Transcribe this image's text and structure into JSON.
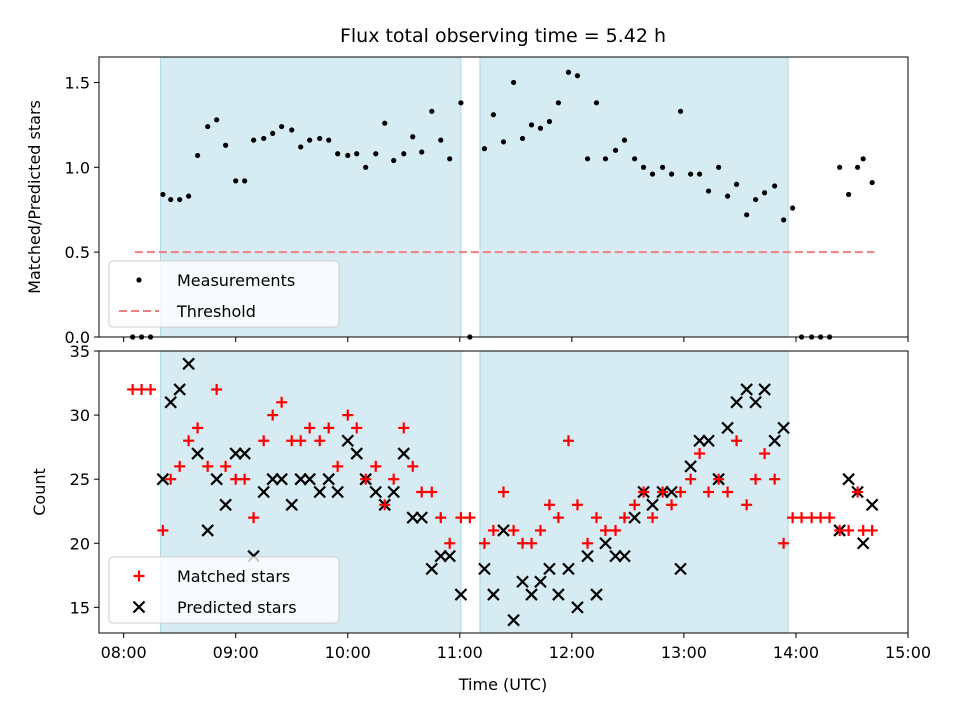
{
  "chart_data": [
    {
      "type": "scatter",
      "title": "Flux total observing time = 5.42 h",
      "xlabel": "",
      "ylabel": "Matched/Predicted stars",
      "xlim": [
        7.78,
        15.0
      ],
      "ylim": [
        0.0,
        1.65
      ],
      "yticks": [
        0.0,
        0.5,
        1.0,
        1.5
      ],
      "ytick_labels": [
        "0.0",
        "0.5",
        "1.0",
        "1.5"
      ],
      "observing_windows": [
        [
          8.33,
          11.01
        ],
        [
          11.18,
          13.93
        ]
      ],
      "legend": {
        "location": "lower-left",
        "entries": [
          "Measurements",
          "Threshold"
        ]
      },
      "threshold": {
        "name": "Threshold",
        "y": 0.5,
        "x_range": [
          8.1,
          14.7
        ],
        "color": "#f08080"
      },
      "series": [
        {
          "name": "Measurements",
          "color": "#000000",
          "x": [
            8.08,
            8.16,
            8.24,
            8.35,
            8.42,
            8.5,
            8.58,
            8.66,
            8.75,
            8.83,
            8.91,
            9.0,
            9.08,
            9.16,
            9.25,
            9.33,
            9.41,
            9.5,
            9.58,
            9.66,
            9.75,
            9.83,
            9.91,
            10.0,
            10.08,
            10.16,
            10.25,
            10.33,
            10.41,
            10.5,
            10.58,
            10.66,
            10.75,
            10.83,
            10.91,
            11.01,
            11.09,
            11.22,
            11.3,
            11.39,
            11.48,
            11.56,
            11.64,
            11.72,
            11.8,
            11.88,
            11.97,
            12.05,
            12.14,
            12.22,
            12.3,
            12.39,
            12.47,
            12.56,
            12.64,
            12.72,
            12.81,
            12.89,
            12.97,
            13.06,
            13.14,
            13.22,
            13.31,
            13.39,
            13.47,
            13.56,
            13.64,
            13.72,
            13.81,
            13.89,
            13.97,
            14.05,
            14.14,
            14.22,
            14.3,
            14.39,
            14.47,
            14.55,
            14.6,
            14.68
          ],
          "values": [
            0.0,
            0.0,
            0.0,
            0.84,
            0.81,
            0.81,
            0.83,
            1.07,
            1.24,
            1.28,
            1.13,
            0.92,
            0.92,
            1.16,
            1.17,
            1.2,
            1.24,
            1.22,
            1.12,
            1.16,
            1.17,
            1.16,
            1.08,
            1.07,
            1.08,
            1.0,
            1.08,
            1.26,
            1.04,
            1.08,
            1.18,
            1.09,
            1.33,
            1.16,
            1.05,
            1.38,
            0.0,
            1.11,
            1.31,
            1.15,
            1.5,
            1.17,
            1.25,
            1.23,
            1.27,
            1.38,
            1.56,
            1.54,
            1.05,
            1.38,
            1.05,
            1.1,
            1.16,
            1.05,
            1.0,
            0.96,
            1.0,
            0.96,
            1.33,
            0.96,
            0.96,
            0.86,
            1.0,
            0.83,
            0.9,
            0.72,
            0.81,
            0.85,
            0.89,
            0.69,
            0.76,
            0.0,
            0.0,
            0.0,
            0.0,
            1.0,
            0.84,
            1.0,
            1.05,
            0.91
          ]
        }
      ]
    },
    {
      "type": "scatter",
      "title": "",
      "xlabel": "Time (UTC)",
      "ylabel": "Count",
      "xlim": [
        7.78,
        15.0
      ],
      "ylim": [
        13,
        35
      ],
      "yticks": [
        15,
        20,
        25,
        30,
        35
      ],
      "ytick_labels": [
        "15",
        "20",
        "25",
        "30",
        "35"
      ],
      "xticks": [
        8,
        9,
        10,
        11,
        12,
        13,
        14,
        15
      ],
      "xtick_labels": [
        "08:00",
        "09:00",
        "10:00",
        "11:00",
        "12:00",
        "13:00",
        "14:00",
        "15:00"
      ],
      "observing_windows": [
        [
          8.33,
          11.01
        ],
        [
          11.18,
          13.93
        ]
      ],
      "legend": {
        "location": "lower-left",
        "entries": [
          "Matched stars",
          "Predicted stars"
        ]
      },
      "series": [
        {
          "name": "Matched stars",
          "marker": "plus",
          "color": "#ff0000",
          "x": [
            8.08,
            8.16,
            8.24,
            8.35,
            8.42,
            8.5,
            8.58,
            8.66,
            8.75,
            8.83,
            8.91,
            9.0,
            9.08,
            9.16,
            9.25,
            9.33,
            9.41,
            9.5,
            9.58,
            9.66,
            9.75,
            9.83,
            9.91,
            10.0,
            10.08,
            10.16,
            10.25,
            10.33,
            10.41,
            10.5,
            10.58,
            10.66,
            10.75,
            10.83,
            10.91,
            11.01,
            11.09,
            11.22,
            11.3,
            11.39,
            11.48,
            11.56,
            11.64,
            11.72,
            11.8,
            11.88,
            11.97,
            12.05,
            12.14,
            12.22,
            12.3,
            12.39,
            12.47,
            12.56,
            12.64,
            12.72,
            12.81,
            12.89,
            12.97,
            13.06,
            13.14,
            13.22,
            13.31,
            13.39,
            13.47,
            13.56,
            13.64,
            13.72,
            13.81,
            13.89,
            13.97,
            14.05,
            14.14,
            14.22,
            14.3,
            14.39,
            14.47,
            14.55,
            14.6,
            14.68
          ],
          "values": [
            32,
            32,
            32,
            21,
            25,
            26,
            28,
            29,
            26,
            32,
            26,
            25,
            25,
            22,
            28,
            30,
            31,
            28,
            28,
            29,
            28,
            29,
            26,
            30,
            29,
            25,
            26,
            23,
            25,
            29,
            26,
            24,
            24,
            22,
            20,
            22,
            22,
            20,
            21,
            24,
            21,
            20,
            20,
            21,
            23,
            22,
            28,
            23,
            20,
            22,
            21,
            21,
            22,
            23,
            24,
            22,
            24,
            23,
            24,
            25,
            27,
            24,
            25,
            24,
            28,
            23,
            25,
            27,
            25,
            20,
            22,
            22,
            22,
            22,
            22,
            21,
            21,
            24,
            21,
            21
          ]
        },
        {
          "name": "Predicted stars",
          "marker": "x",
          "color": "#000000",
          "x": [
            8.35,
            8.42,
            8.5,
            8.58,
            8.66,
            8.75,
            8.83,
            8.91,
            9.0,
            9.08,
            9.16,
            9.25,
            9.33,
            9.41,
            9.5,
            9.58,
            9.66,
            9.75,
            9.83,
            9.91,
            10.0,
            10.08,
            10.16,
            10.25,
            10.33,
            10.41,
            10.5,
            10.58,
            10.66,
            10.75,
            10.83,
            10.91,
            11.01,
            11.22,
            11.3,
            11.39,
            11.48,
            11.56,
            11.64,
            11.72,
            11.8,
            11.88,
            11.97,
            12.05,
            12.14,
            12.22,
            12.3,
            12.39,
            12.47,
            12.56,
            12.64,
            12.72,
            12.81,
            12.89,
            12.97,
            13.06,
            13.14,
            13.22,
            13.31,
            13.39,
            13.47,
            13.56,
            13.64,
            13.72,
            13.81,
            13.89,
            14.39,
            14.47,
            14.55,
            14.6,
            14.68
          ],
          "values": [
            25,
            31,
            32,
            34,
            27,
            21,
            25,
            23,
            27,
            27,
            19,
            24,
            25,
            25,
            23,
            25,
            25,
            24,
            25,
            24,
            28,
            27,
            25,
            24,
            23,
            24,
            27,
            22,
            22,
            18,
            19,
            19,
            16,
            18,
            16,
            21,
            14,
            17,
            16,
            17,
            18,
            16,
            18,
            15,
            19,
            16,
            20,
            19,
            19,
            22,
            24,
            23,
            24,
            24,
            18,
            26,
            28,
            28,
            25,
            29,
            31,
            32,
            31,
            32,
            28,
            29,
            21,
            25,
            24,
            20,
            23
          ]
        }
      ]
    }
  ]
}
